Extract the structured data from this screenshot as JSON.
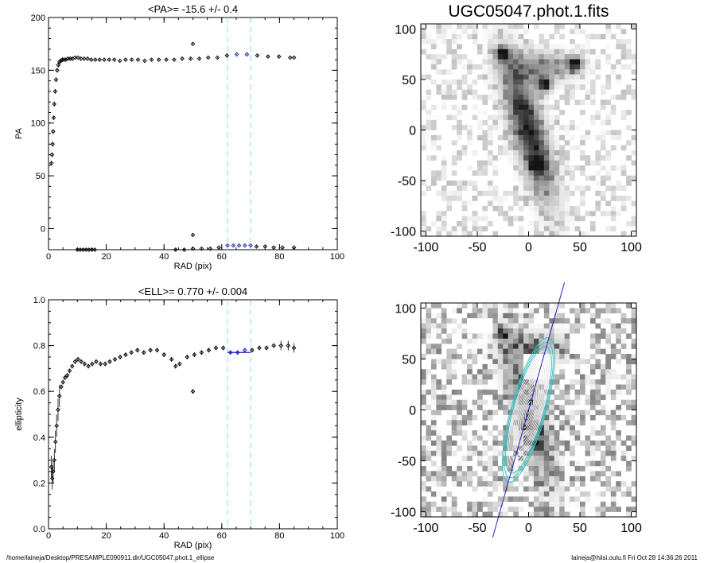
{
  "chart_data": [
    {
      "type": "scatter",
      "title": "<PA>= -15.6 +/-   0.4",
      "xlabel": "RAD (pix)",
      "ylabel": "PA",
      "xlim": [
        0,
        100
      ],
      "ylim": [
        -20,
        200
      ],
      "xticks": [
        "0",
        "20",
        "40",
        "60",
        "80",
        "100"
      ],
      "yticks": [
        "0",
        "50",
        "100",
        "150",
        "200"
      ],
      "xtick_values": [
        0,
        20,
        40,
        60,
        80,
        100
      ],
      "ytick_values": [
        0,
        50,
        100,
        150,
        200
      ],
      "vlines": [
        62,
        70
      ],
      "vline_color": "#80e0e0",
      "fit_color": "#2020c0",
      "series": [
        {
          "x": [
            1.0,
            1.2,
            1.4,
            1.6,
            1.8,
            2.0,
            2.3,
            2.6,
            3.0,
            3.4,
            3.8,
            4.3,
            4.8,
            5.4,
            6.0,
            6.7,
            7.5,
            8.3,
            9.2,
            10.2,
            11.2,
            12.3,
            13.5,
            14.8,
            16.2,
            17.7,
            19.3,
            21.0,
            22.8,
            24.7,
            26.7,
            28.8,
            31.0,
            33.3,
            35.7,
            38.2,
            40.8,
            43.5,
            46.3,
            49.2,
            52.2,
            55.3,
            58.5,
            61.8,
            65.2,
            68.7,
            72.3,
            76.0,
            79.8,
            83.7,
            85.0
          ],
          "y": [
            62,
            70,
            80,
            92,
            105,
            118,
            130,
            141,
            150,
            155,
            158,
            159,
            160,
            160,
            160,
            161,
            161,
            161,
            162,
            162,
            161,
            161,
            161,
            160,
            160,
            160,
            160,
            160,
            160,
            159,
            160,
            160,
            160,
            159,
            160,
            160,
            160,
            160,
            161,
            161,
            161,
            162,
            162,
            164,
            165,
            165,
            164,
            163,
            163,
            162,
            162
          ]
        },
        {
          "x": [
            10.0,
            11.0,
            12.0,
            13.0,
            14.0,
            15.0,
            16.0,
            44.0,
            47.0,
            50.0,
            53.0,
            56.0,
            59.0,
            62.0,
            64.0,
            66.0,
            68.0,
            70.0,
            72.0,
            75.0,
            78.0,
            81.0,
            85.0
          ],
          "y": [
            -20,
            -20,
            -20,
            -20,
            -20,
            -20,
            -20,
            -20,
            -20,
            -19,
            -19,
            -19,
            -18,
            -16,
            -16,
            -16,
            -16,
            -16,
            -17,
            -17,
            -18,
            -18,
            -18
          ]
        },
        {
          "x": [
            50.0,
            50.0
          ],
          "y": [
            175,
            -6
          ]
        }
      ]
    },
    {
      "type": "scatter",
      "title": "<ELL>= 0.770 +/-  0.004",
      "xlabel": "RAD (pix)",
      "ylabel": "ellipticity",
      "xlim": [
        0,
        100
      ],
      "ylim": [
        0,
        1
      ],
      "xticks": [
        "0",
        "20",
        "40",
        "60",
        "80",
        "100"
      ],
      "yticks": [
        "0.0",
        "0.2",
        "0.4",
        "0.6",
        "0.8",
        "1.0"
      ],
      "xtick_values": [
        0,
        20,
        40,
        60,
        80,
        100
      ],
      "ytick_values": [
        0,
        0.2,
        0.4,
        0.6,
        0.8,
        1.0
      ],
      "vlines": [
        62,
        70
      ],
      "fit_y": 0.77,
      "series": [
        {
          "x": [
            1.0,
            1.3,
            1.6,
            2.0,
            2.4,
            2.8,
            3.3,
            3.8,
            4.4,
            5.0,
            5.7,
            6.5,
            7.3,
            8.2,
            9.2,
            10.2,
            11.3,
            12.5,
            13.8,
            15.1,
            16.5,
            18.0,
            19.6,
            21.2,
            23.0,
            24.8,
            26.7,
            28.7,
            30.8,
            33.0,
            35.3,
            37.6,
            40.0,
            42.6,
            44.0,
            45.4,
            48.0,
            50.5,
            53.0,
            55.5,
            58.0,
            60.5,
            63.0,
            65.5,
            68.0,
            70.5,
            73.0,
            75.5,
            78.0,
            80.5,
            83.0,
            85.0
          ],
          "y": [
            0.27,
            0.22,
            0.25,
            0.3,
            0.38,
            0.45,
            0.52,
            0.58,
            0.62,
            0.64,
            0.66,
            0.67,
            0.69,
            0.71,
            0.73,
            0.74,
            0.73,
            0.72,
            0.71,
            0.72,
            0.73,
            0.72,
            0.72,
            0.73,
            0.74,
            0.75,
            0.76,
            0.77,
            0.78,
            0.77,
            0.78,
            0.78,
            0.76,
            0.74,
            0.71,
            0.72,
            0.75,
            0.76,
            0.77,
            0.78,
            0.79,
            0.79,
            0.77,
            0.77,
            0.78,
            0.78,
            0.79,
            0.79,
            0.8,
            0.8,
            0.8,
            0.79
          ]
        },
        {
          "x": [
            50.0
          ],
          "y": [
            0.6
          ]
        }
      ]
    },
    {
      "type": "heatmap",
      "title": "UGC05047.phot.1.fits",
      "xlim": [
        -105,
        105
      ],
      "ylim": [
        -105,
        105
      ],
      "xticks": [
        "-100",
        "-50",
        "0",
        "50",
        "100"
      ],
      "yticks": [
        "-100",
        "-50",
        "0",
        "50",
        "100"
      ],
      "tick_values": [
        -100,
        -50,
        0,
        50,
        100
      ]
    },
    {
      "type": "heatmap",
      "title": "",
      "xlim": [
        -105,
        105
      ],
      "ylim": [
        -105,
        105
      ],
      "xticks": [
        "-100",
        "-50",
        "0",
        "50",
        "100"
      ],
      "yticks": [
        "-100",
        "-50",
        "0",
        "50",
        "100"
      ],
      "tick_values": [
        -100,
        -50,
        0,
        50,
        100
      ],
      "ellipse_pa_deg": -15.6,
      "ellipse_ell": 0.77
    }
  ],
  "footer": {
    "left": "/home/laineja/Desktop/PRESAMPLE090911.dir/UGC05047.phot.1_ellipse",
    "right": "laineja@hiisi.oulu.fi  Fri Oct 28 14:36:26 2011"
  }
}
